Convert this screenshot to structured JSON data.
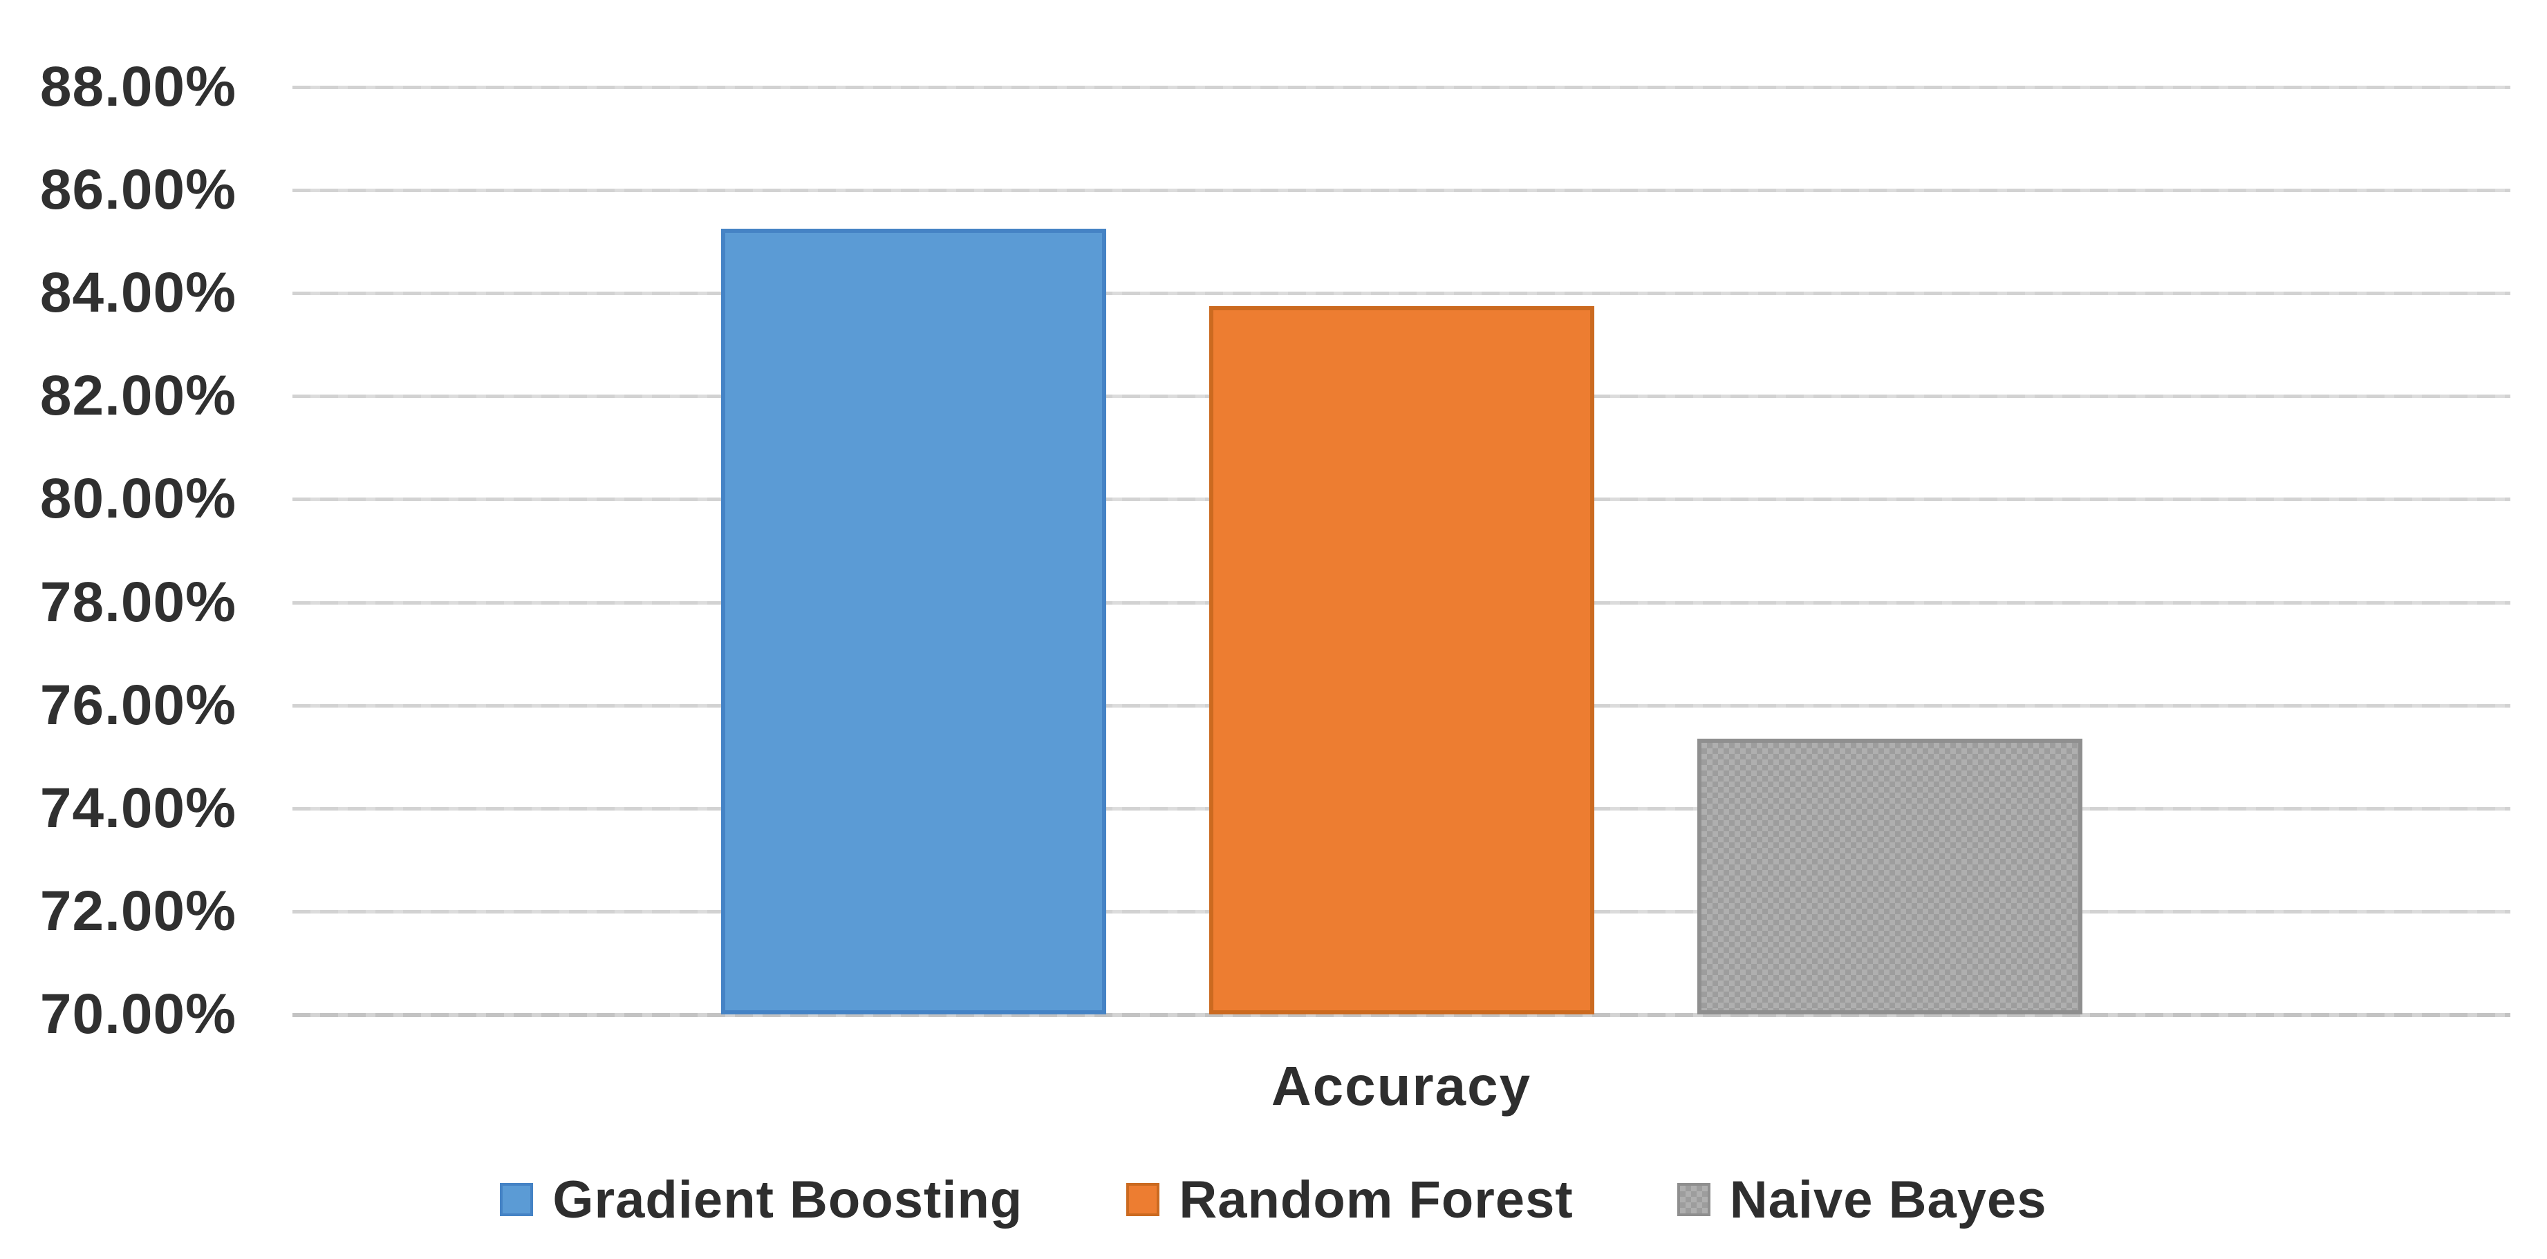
{
  "chart_data": {
    "type": "bar",
    "title": "",
    "categories": [
      "Accuracy"
    ],
    "series": [
      {
        "name": "Gradient Boosting",
        "values": [
          85.25
        ],
        "color": "#5B9BD5",
        "border_color": "#4583C5",
        "pattern": "solid"
      },
      {
        "name": "Random Forest",
        "values": [
          83.75
        ],
        "color": "#ED7D31",
        "border_color": "#CB6A20",
        "pattern": "solid"
      },
      {
        "name": "Naive Bayes",
        "values": [
          75.35
        ],
        "color": "#AFAFAF",
        "border_color": "#8F8F8F",
        "pattern": "checker",
        "pattern_color": "#9D9D9D"
      }
    ],
    "xlabel": "Accuracy",
    "ylabel": "",
    "ylim": [
      70,
      88
    ],
    "ytick_step": 2,
    "ytick_labels": [
      "88.00%",
      "86.00%",
      "84.00%",
      "82.00%",
      "80.00%",
      "78.00%",
      "76.00%",
      "74.00%",
      "72.00%",
      "70.00%"
    ],
    "grid": true,
    "legend_position": "bottom",
    "background_color": "#FFFFFF",
    "gridline_color": "#D7D7D7",
    "axis_line_color": "#C9C9C9",
    "text_color": "#303030"
  }
}
